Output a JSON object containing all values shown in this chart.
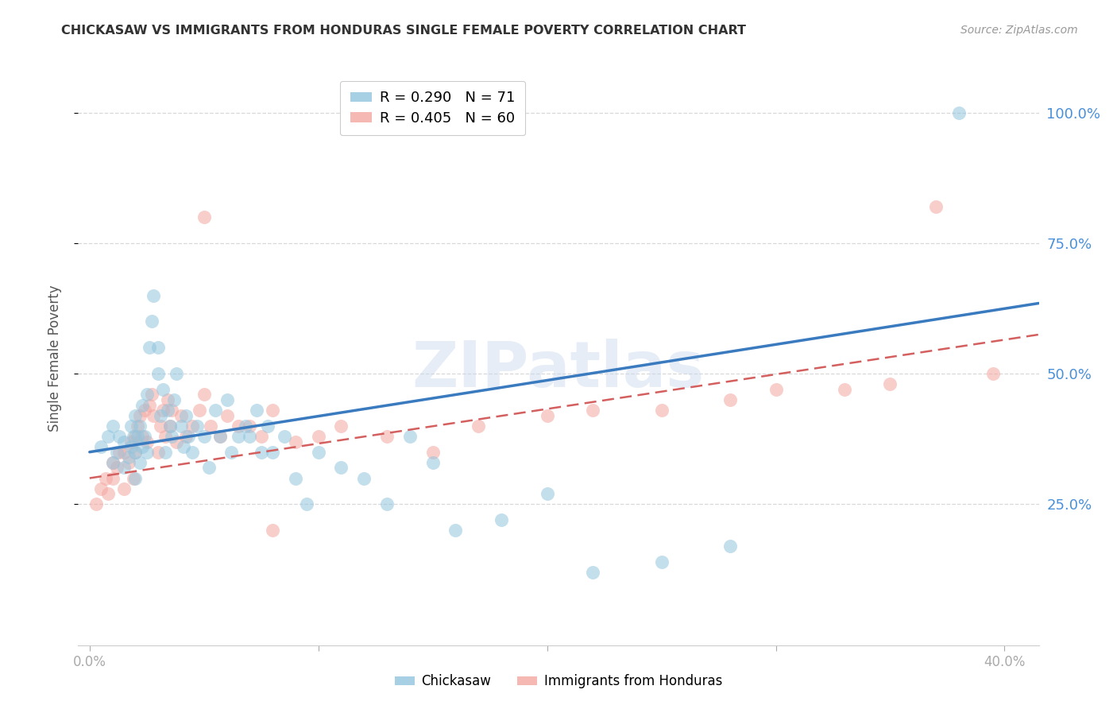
{
  "title": "CHICKASAW VS IMMIGRANTS FROM HONDURAS SINGLE FEMALE POVERTY CORRELATION CHART",
  "source": "Source: ZipAtlas.com",
  "ylabel": "Single Female Poverty",
  "ytick_labels": [
    "100.0%",
    "75.0%",
    "50.0%",
    "25.0%"
  ],
  "ytick_values": [
    1.0,
    0.75,
    0.5,
    0.25
  ],
  "xlim": [
    -0.005,
    0.415
  ],
  "ylim": [
    -0.02,
    1.08
  ],
  "legend_blue_r": "R = 0.290",
  "legend_blue_n": "N = 71",
  "legend_pink_r": "R = 0.405",
  "legend_pink_n": "N = 60",
  "legend_label_blue": "Chickasaw",
  "legend_label_pink": "Immigrants from Honduras",
  "blue_color": "#92c5de",
  "pink_color": "#f4a6a0",
  "blue_line_color": "#3a7abf",
  "pink_line_color": "#d45f5f",
  "watermark": "ZIPatlas",
  "blue_x": [
    0.005,
    0.008,
    0.01,
    0.01,
    0.012,
    0.013,
    0.015,
    0.015,
    0.017,
    0.018,
    0.018,
    0.019,
    0.02,
    0.02,
    0.02,
    0.021,
    0.022,
    0.022,
    0.023,
    0.023,
    0.024,
    0.025,
    0.025,
    0.026,
    0.027,
    0.028,
    0.03,
    0.03,
    0.031,
    0.032,
    0.033,
    0.034,
    0.035,
    0.036,
    0.037,
    0.038,
    0.04,
    0.041,
    0.042,
    0.043,
    0.045,
    0.047,
    0.05,
    0.052,
    0.055,
    0.057,
    0.06,
    0.062,
    0.065,
    0.068,
    0.07,
    0.073,
    0.075,
    0.078,
    0.08,
    0.085,
    0.09,
    0.095,
    0.1,
    0.11,
    0.12,
    0.13,
    0.14,
    0.15,
    0.16,
    0.18,
    0.2,
    0.22,
    0.25,
    0.28,
    0.38
  ],
  "blue_y": [
    0.36,
    0.38,
    0.33,
    0.4,
    0.35,
    0.38,
    0.32,
    0.37,
    0.34,
    0.36,
    0.4,
    0.38,
    0.3,
    0.35,
    0.42,
    0.38,
    0.33,
    0.4,
    0.36,
    0.44,
    0.38,
    0.35,
    0.46,
    0.55,
    0.6,
    0.65,
    0.5,
    0.55,
    0.42,
    0.47,
    0.35,
    0.43,
    0.4,
    0.38,
    0.45,
    0.5,
    0.4,
    0.36,
    0.42,
    0.38,
    0.35,
    0.4,
    0.38,
    0.32,
    0.43,
    0.38,
    0.45,
    0.35,
    0.38,
    0.4,
    0.38,
    0.43,
    0.35,
    0.4,
    0.35,
    0.38,
    0.3,
    0.25,
    0.35,
    0.32,
    0.3,
    0.25,
    0.38,
    0.33,
    0.2,
    0.22,
    0.27,
    0.12,
    0.14,
    0.17,
    1.0
  ],
  "pink_x": [
    0.003,
    0.005,
    0.007,
    0.008,
    0.01,
    0.01,
    0.012,
    0.013,
    0.015,
    0.015,
    0.017,
    0.018,
    0.019,
    0.02,
    0.02,
    0.021,
    0.022,
    0.023,
    0.024,
    0.025,
    0.026,
    0.027,
    0.028,
    0.03,
    0.031,
    0.032,
    0.033,
    0.034,
    0.035,
    0.036,
    0.038,
    0.04,
    0.042,
    0.045,
    0.048,
    0.05,
    0.053,
    0.057,
    0.06,
    0.065,
    0.07,
    0.075,
    0.08,
    0.09,
    0.1,
    0.11,
    0.13,
    0.15,
    0.17,
    0.2,
    0.22,
    0.25,
    0.28,
    0.3,
    0.33,
    0.35,
    0.37,
    0.395,
    0.05,
    0.08
  ],
  "pink_y": [
    0.25,
    0.28,
    0.3,
    0.27,
    0.33,
    0.3,
    0.32,
    0.35,
    0.28,
    0.35,
    0.33,
    0.37,
    0.3,
    0.35,
    0.38,
    0.4,
    0.42,
    0.38,
    0.43,
    0.37,
    0.44,
    0.46,
    0.42,
    0.35,
    0.4,
    0.43,
    0.38,
    0.45,
    0.4,
    0.43,
    0.37,
    0.42,
    0.38,
    0.4,
    0.43,
    0.46,
    0.4,
    0.38,
    0.42,
    0.4,
    0.4,
    0.38,
    0.43,
    0.37,
    0.38,
    0.4,
    0.38,
    0.35,
    0.4,
    0.42,
    0.43,
    0.43,
    0.45,
    0.47,
    0.47,
    0.48,
    0.82,
    0.5,
    0.8,
    0.2
  ],
  "blue_trend": [
    0.0,
    0.415,
    0.35,
    0.635
  ],
  "pink_trend": [
    0.0,
    0.415,
    0.3,
    0.575
  ],
  "xtick_positions": [
    0.0,
    0.1,
    0.2,
    0.3,
    0.4
  ],
  "xtick_labels_show": [
    "0.0%",
    "",
    "",
    "",
    "40.0%"
  ],
  "background_color": "#ffffff",
  "grid_color": "#d8d8d8",
  "spine_color": "#cccccc",
  "tick_color": "#aaaaaa",
  "title_color": "#333333",
  "ylabel_color": "#555555",
  "right_tick_color": "#4a90d9"
}
